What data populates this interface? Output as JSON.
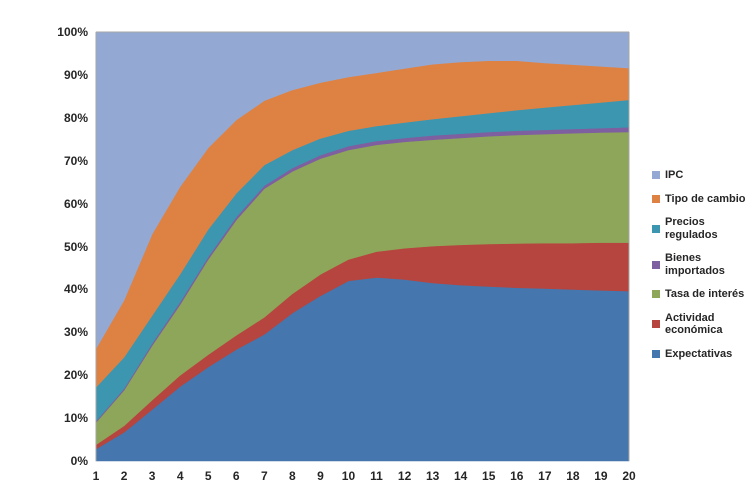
{
  "chart_data": {
    "type": "area",
    "stacked": "percent",
    "title": "",
    "xlabel": "",
    "ylabel": "",
    "ylim": [
      0,
      100
    ],
    "grid": false,
    "legend_position": "right",
    "x_categories": [
      "1",
      "2",
      "3",
      "4",
      "5",
      "6",
      "7",
      "8",
      "9",
      "10",
      "11",
      "12",
      "13",
      "14",
      "15",
      "16",
      "17",
      "18",
      "19",
      "20"
    ],
    "y_tick_labels": [
      "0%",
      "10%",
      "20%",
      "30%",
      "40%",
      "50%",
      "60%",
      "70%",
      "80%",
      "90%",
      "100%"
    ],
    "legend_order_top_to_bottom": [
      "IPC",
      "Tipo de cambio",
      "Precios regulados",
      "Bienes importados",
      "Tasa de interés",
      "Actividad económica",
      "Expectativas"
    ],
    "series": [
      {
        "name": "Expectativas",
        "color": "#4576AD",
        "values": [
          2.8,
          6.7,
          12.0,
          17.4,
          21.9,
          26.0,
          29.5,
          34.5,
          38.5,
          42.0,
          42.8,
          42.3,
          41.5,
          41.0,
          40.7,
          40.4,
          40.2,
          40.0,
          39.8,
          39.6
        ]
      },
      {
        "name": "Actividad económica",
        "color": "#B6453F",
        "values": [
          1.0,
          1.5,
          2.2,
          2.6,
          2.9,
          3.3,
          4.0,
          4.5,
          5.0,
          5.0,
          6.0,
          7.3,
          8.6,
          9.4,
          9.9,
          10.3,
          10.6,
          10.8,
          11.1,
          11.3
        ]
      },
      {
        "name": "Tasa de interés",
        "color": "#8DA659",
        "values": [
          5.2,
          8.3,
          12.7,
          16.5,
          22.2,
          26.9,
          30.0,
          28.5,
          27.0,
          25.5,
          24.9,
          24.8,
          24.8,
          24.9,
          25.1,
          25.3,
          25.4,
          25.6,
          25.7,
          25.8
        ]
      },
      {
        "name": "Bienes importados",
        "color": "#7E5FA0",
        "values": [
          0.3,
          0.4,
          0.5,
          0.6,
          0.6,
          0.7,
          0.7,
          0.8,
          0.8,
          0.9,
          0.9,
          0.9,
          1.0,
          1.0,
          1.0,
          1.0,
          1.0,
          1.0,
          1.0,
          1.1
        ]
      },
      {
        "name": "Precios regulados",
        "color": "#3C96AF",
        "values": [
          7.9,
          7.3,
          6.5,
          6.5,
          6.4,
          5.5,
          4.8,
          4.2,
          3.9,
          3.6,
          3.5,
          3.6,
          3.8,
          4.1,
          4.4,
          4.8,
          5.2,
          5.6,
          6.0,
          6.4
        ]
      },
      {
        "name": "Tipo de cambio",
        "color": "#DE8244",
        "values": [
          9.0,
          13.3,
          19.0,
          20.4,
          19.0,
          17.1,
          15.0,
          14.0,
          13.0,
          12.5,
          12.4,
          12.6,
          12.8,
          12.6,
          12.2,
          11.5,
          10.4,
          9.4,
          8.4,
          7.4
        ]
      },
      {
        "name": "IPC",
        "color": "#93A9D4",
        "values": [
          73.8,
          62.5,
          47.1,
          36.0,
          27.0,
          20.5,
          16.0,
          13.5,
          11.8,
          10.5,
          9.5,
          8.5,
          7.5,
          7.0,
          6.7,
          6.7,
          7.2,
          7.6,
          8.0,
          8.4
        ]
      }
    ],
    "plot_border_color": "#A6A6A6",
    "axis_text_color": "#262626"
  }
}
